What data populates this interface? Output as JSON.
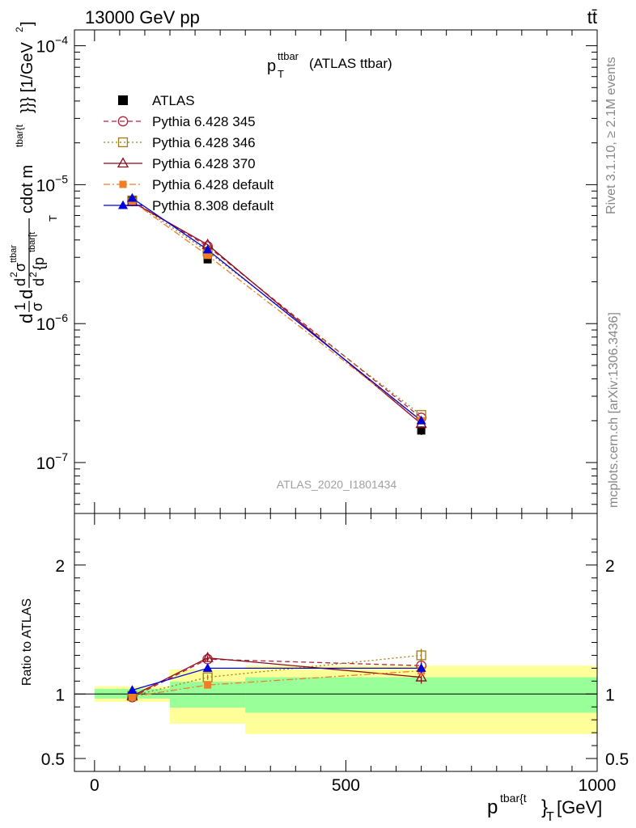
{
  "header": {
    "process": "13000 GeV pp",
    "final_state": "tt̄"
  },
  "side_labels": {
    "rivet": "Rivet 3.1.10, ≥ 2.1M events",
    "source": "mcplots.cern.ch [arXiv:1306.3436]"
  },
  "chart_data": [
    {
      "type": "line",
      "title": "p_T^ttbar (ATLAS ttbar)",
      "title_main": "p",
      "title_sub": "T",
      "title_sup": "ttbar",
      "title_rest": "(ATLAS ttbar)",
      "watermark": "ATLAS_2020_I1801434",
      "ylabel": "d(1/σ)d d²σ^ttbar / d² {p^tbar[t]}_T cdot m^tbar{t}}}} [1/GeV²]",
      "ylabel_parts": {
        "d1": "d",
        "frac1_num": "1",
        "frac1_den": "σ",
        "d2": "d",
        "frac2_num": "d",
        "frac2_num_sup": "2",
        "frac2_num_sym": "σ",
        "frac2_num_sym_sup": "ttbar",
        "frac2_den": "d",
        "frac2_den_sup": "2",
        "frac2_den_rest": "{p",
        "frac2_den_rest_sup": "tbar[t",
        "frac2_den_sub": "T",
        "tail": "cdot m",
        "tail_sup": "tbar{t",
        "tail_end": "}}} [1/GeV",
        "tail_end_sup": "2",
        "tail_close": "]"
      },
      "y_scale": "log",
      "ylim": [
        4.3e-08,
        0.00013
      ],
      "xlim": [
        -40,
        1000
      ],
      "y_ticks": [
        {
          "value": 1e-07,
          "base": "10",
          "exp": "−7"
        },
        {
          "value": 1e-06,
          "base": "10",
          "exp": "−6"
        },
        {
          "value": 1e-05,
          "base": "10",
          "exp": "−5"
        },
        {
          "value": 0.0001,
          "base": "10",
          "exp": "−4"
        }
      ],
      "legend_placement": "top-left",
      "series": [
        {
          "name": "ATLAS",
          "color": "#000000",
          "marker": "filled-square",
          "dash": "none",
          "x": [
            75,
            225,
            650
          ],
          "y": [
            7.8e-06,
            2.9e-06,
            1.7e-07
          ],
          "yerr": [
            3e-07,
            1.2e-07,
            1.2e-08
          ]
        },
        {
          "name": "Pythia 6.428 345",
          "color": "#b2223b",
          "marker": "open-circle",
          "dash": "6,4",
          "x": [
            75,
            225,
            650
          ],
          "y": [
            7.6e-06,
            3.6e-06,
            2.1e-07
          ]
        },
        {
          "name": "Pythia 6.428 346",
          "color": "#a07a10",
          "marker": "open-square",
          "dash": "2,3",
          "x": [
            75,
            225,
            650
          ],
          "y": [
            7.7e-06,
            3.3e-06,
            2.2e-07
          ]
        },
        {
          "name": "Pythia 6.428 370",
          "color": "#8b0a1a",
          "marker": "open-triangle",
          "dash": "none",
          "x": [
            75,
            225,
            650
          ],
          "y": [
            7.5e-06,
            3.7e-06,
            1.9e-07
          ]
        },
        {
          "name": "Pythia 6.428 default",
          "color": "#f07e26",
          "marker": "filled-square-small",
          "dash": "8,3,2,3",
          "x": [
            75,
            225,
            650
          ],
          "y": [
            7.6e-06,
            3.1e-06,
            2e-07
          ]
        },
        {
          "name": "Pythia 8.308 default",
          "color": "#0000dd",
          "marker": "filled-triangle",
          "dash": "none",
          "x": [
            75,
            225,
            650
          ],
          "y": [
            8e-06,
            3.4e-06,
            2e-07
          ]
        }
      ]
    },
    {
      "type": "line",
      "ylabel": "Ratio to ATLAS",
      "xlabel": "p^tbar{t}_T [GeV]",
      "xlabel_parts": {
        "main": "p",
        "sup": "tbar{t",
        "brace": "}",
        "sub": "T",
        "unit": "[GeV]"
      },
      "xlim": [
        -40,
        1000
      ],
      "ylim": [
        0.4,
        2.4
      ],
      "y_ticks": [
        {
          "value": 0.5,
          "label": "0.5"
        },
        {
          "value": 1,
          "label": "1"
        },
        {
          "value": 2,
          "label": "2"
        }
      ],
      "x_ticks": [
        {
          "value": 0,
          "label": "0"
        },
        {
          "value": 500,
          "label": "500"
        },
        {
          "value": 1000,
          "label": "1000"
        }
      ],
      "bands": [
        {
          "x0": 0,
          "x1": 150,
          "stat": [
            0.965,
            1.04
          ],
          "total": [
            0.94,
            1.06
          ]
        },
        {
          "x0": 150,
          "x1": 300,
          "stat": [
            0.895,
            1.095
          ],
          "total": [
            0.77,
            1.19
          ]
        },
        {
          "x0": 300,
          "x1": 1000,
          "stat": [
            0.855,
            1.13
          ],
          "total": [
            0.69,
            1.22
          ]
        }
      ],
      "band_colors": {
        "stat": "#99ff99",
        "total": "#ffff99"
      },
      "series": [
        {
          "name": "ATLAS",
          "color": "#000000",
          "x": [
            75,
            225,
            650
          ],
          "y": [
            1,
            1,
            1
          ]
        },
        {
          "name": "Pythia 6.428 345",
          "color": "#b2223b",
          "marker": "open-circle",
          "dash": "6,4",
          "x": [
            75,
            225,
            650
          ],
          "y": [
            0.975,
            1.27,
            1.22
          ],
          "yerr": [
            0.01,
            0.02,
            0.04
          ]
        },
        {
          "name": "Pythia 6.428 346",
          "color": "#a07a10",
          "marker": "open-square",
          "dash": "2,3",
          "x": [
            75,
            225,
            650
          ],
          "y": [
            0.985,
            1.13,
            1.3
          ],
          "yerr": [
            0.01,
            0.02,
            0.05
          ]
        },
        {
          "name": "Pythia 6.428 370",
          "color": "#8b0a1a",
          "marker": "open-triangle",
          "dash": "none",
          "x": [
            75,
            225,
            650
          ],
          "y": [
            0.985,
            1.28,
            1.13
          ],
          "yerr": [
            0.01,
            0.02,
            0.05
          ]
        },
        {
          "name": "Pythia 6.428 default",
          "color": "#f07e26",
          "marker": "filled-square-small",
          "dash": "8,3,2,3",
          "x": [
            75,
            225,
            650
          ],
          "y": [
            0.98,
            1.07,
            1.18
          ],
          "yerr": [
            0.01,
            0.02,
            0.04
          ]
        },
        {
          "name": "Pythia 8.308 default",
          "color": "#0000dd",
          "marker": "filled-triangle",
          "dash": "none",
          "x": [
            75,
            225,
            650
          ],
          "y": [
            1.03,
            1.2,
            1.2
          ],
          "yerr": [
            0.015,
            0.02,
            0.04
          ]
        }
      ]
    }
  ]
}
